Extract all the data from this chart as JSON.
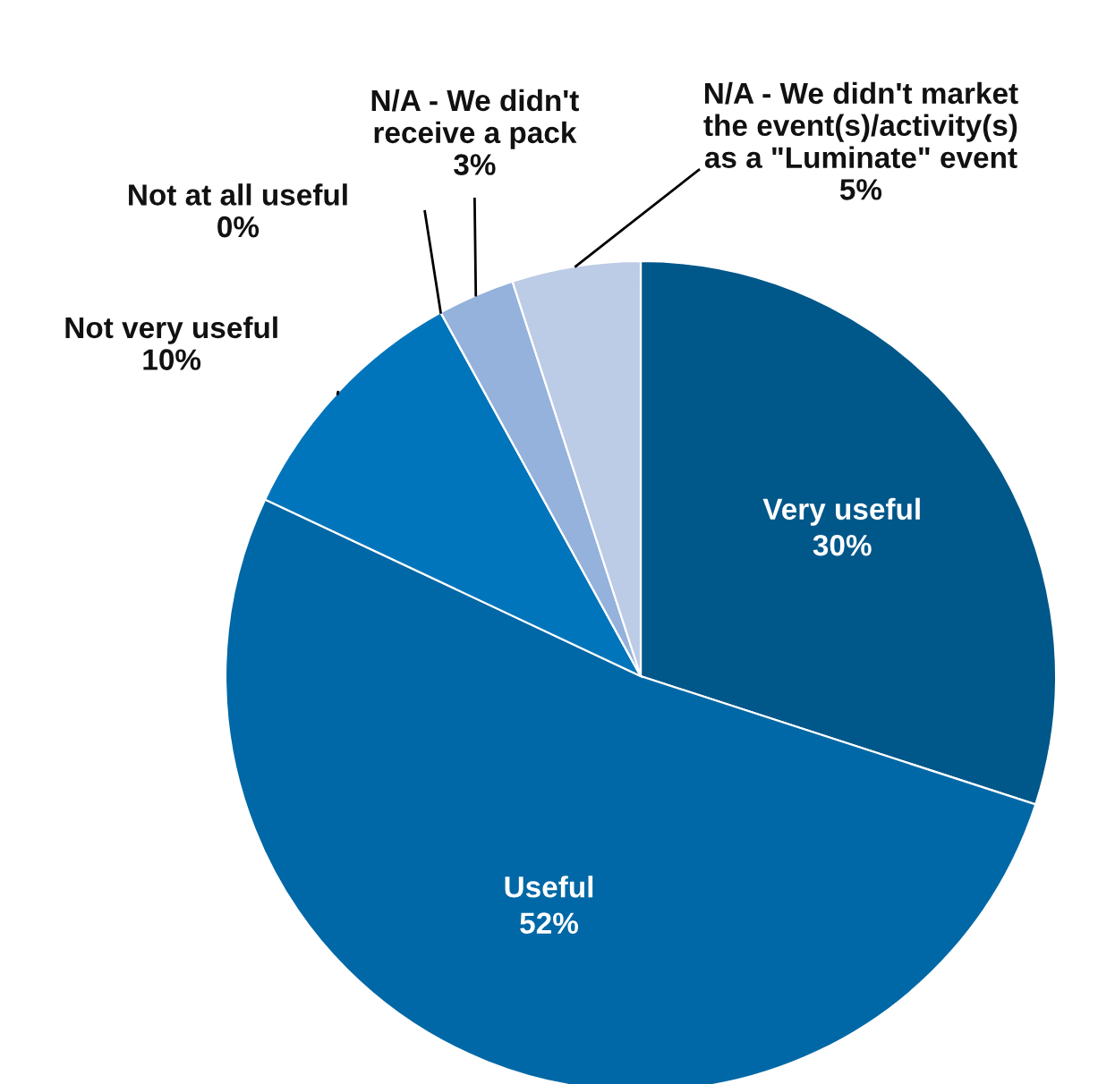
{
  "chart_data": {
    "type": "pie",
    "categories": [
      "Very useful",
      "Useful",
      "Not very useful",
      "Not at all useful",
      "N/A - We didn't receive a pack",
      "N/A - We didn't market the event(s)/activity(s) as a \"Luminate\" event"
    ],
    "values": [
      30,
      52,
      10,
      0,
      3,
      5
    ],
    "value_labels": [
      "30%",
      "52%",
      "10%",
      "0%",
      "3%",
      "5%"
    ],
    "colors": [
      "#00578a",
      "#0068a6",
      "#0075bb",
      "#4d8fcc",
      "#94b2db",
      "#bccbe6"
    ]
  }
}
